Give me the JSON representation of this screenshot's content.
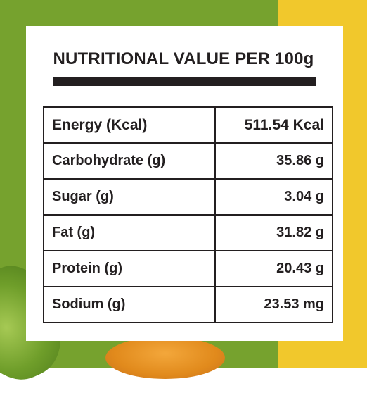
{
  "colors": {
    "green": "#76a22e",
    "yellow": "#f1c82c",
    "ink": "#231f20"
  },
  "title": "NUTRITIONAL VALUE PER 100g",
  "rows": [
    {
      "name": "Energy (Kcal)",
      "value": "511.54 Kcal"
    },
    {
      "name": "Carbohydrate (g)",
      "value": "35.86 g"
    },
    {
      "name": "Sugar (g)",
      "value": "3.04 g"
    },
    {
      "name": "Fat (g)",
      "value": "31.82 g"
    },
    {
      "name": "Protein (g)",
      "value": "20.43 g"
    },
    {
      "name": "Sodium (g)",
      "value": "23.53 mg"
    }
  ]
}
